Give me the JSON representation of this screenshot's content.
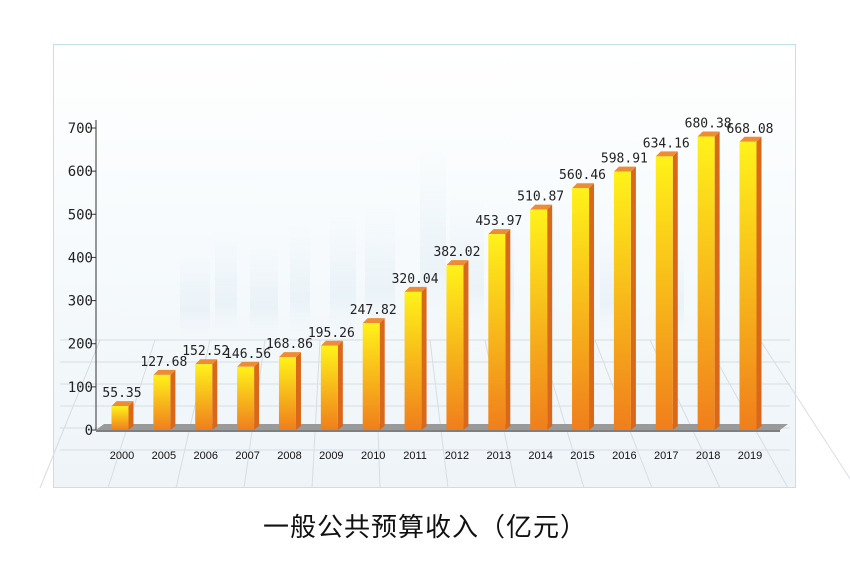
{
  "chart_data": {
    "type": "bar",
    "title": "一般公共预算收入（亿元）",
    "categories": [
      "2000",
      "2005",
      "2006",
      "2007",
      "2008",
      "2009",
      "2010",
      "2011",
      "2012",
      "2013",
      "2014",
      "2015",
      "2016",
      "2017",
      "2018",
      "2019"
    ],
    "values": [
      55.35,
      127.68,
      152.52,
      146.56,
      168.86,
      195.26,
      247.82,
      320.04,
      382.02,
      453.97,
      510.87,
      560.46,
      598.91,
      634.16,
      680.38,
      668.08
    ],
    "value_labels": [
      "55.35",
      "127.68",
      "152.52",
      "146.56",
      "168.86",
      "195.26",
      "247.82",
      "320.04",
      "382.02",
      "453.97",
      "510.87",
      "560.46",
      "598.91",
      "634.16",
      "680.38",
      "668.08"
    ],
    "yticks": [
      "0",
      "100",
      "200",
      "300",
      "400",
      "500",
      "600",
      "700"
    ],
    "ylim": [
      0,
      700
    ],
    "xlabel": "",
    "ylabel": "",
    "grid": false,
    "colors": {
      "bar_top": "#fff21a",
      "bar_bottom": "#f07e1c",
      "bar_side": "#d9681a",
      "bar_cap": "#ee8c34",
      "base": "#7f7f7f"
    }
  }
}
